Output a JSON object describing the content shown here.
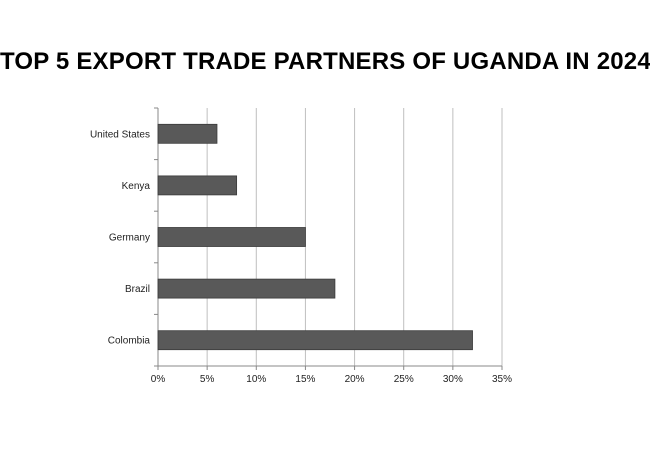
{
  "chart_data": {
    "type": "bar",
    "orientation": "horizontal",
    "title": "TOP 5 EXPORT TRADE PARTNERS OF UGANDA IN 2024",
    "categories": [
      "United States",
      "Kenya",
      "Germany",
      "Brazil",
      "Colombia"
    ],
    "values": [
      6,
      8,
      15,
      18,
      32
    ],
    "xlim": [
      0,
      35
    ],
    "xticks": [
      "0%",
      "5%",
      "10%",
      "15%",
      "20%",
      "25%",
      "30%",
      "35%"
    ],
    "xtick_values": [
      0,
      5,
      10,
      15,
      20,
      25,
      30,
      35
    ],
    "grid": true,
    "bar_color": "#595959",
    "grid_color": "#bfbfbf"
  }
}
